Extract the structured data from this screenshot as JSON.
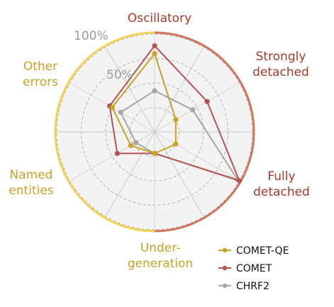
{
  "chart_data": {
    "type": "radar",
    "axes": [
      {
        "key": "oscillatory",
        "lines": [
          "Oscillatory"
        ],
        "group": "hallucination"
      },
      {
        "key": "strongly_detached",
        "lines": [
          "Strongly",
          "detached"
        ],
        "group": "hallucination"
      },
      {
        "key": "fully_detached",
        "lines": [
          "Fully",
          "detached"
        ],
        "group": "hallucination"
      },
      {
        "key": "undergeneration",
        "lines": [
          "Under-",
          "generation"
        ],
        "group": "error"
      },
      {
        "key": "named_entities",
        "lines": [
          "Named",
          "entities"
        ],
        "group": "error"
      },
      {
        "key": "other_errors",
        "lines": [
          "Other",
          "errors"
        ],
        "group": "error"
      }
    ],
    "range": [
      0,
      100
    ],
    "ticks": [
      {
        "value": 50,
        "label": "50%"
      },
      {
        "value": 100,
        "label": "100%"
      }
    ],
    "grid": true,
    "legend_position": "bottom-right",
    "series": [
      {
        "name": "COMET-QE",
        "color": "#c9a227",
        "values": [
          80,
          25,
          25,
          22,
          28,
          50
        ]
      },
      {
        "name": "COMET",
        "color": "#b5534f",
        "values": [
          88,
          62,
          100,
          22,
          44,
          53
        ]
      },
      {
        "name": "CHRF2",
        "color": "#a6a6a6",
        "values": [
          42,
          45,
          98,
          22,
          22,
          40
        ]
      }
    ],
    "group_colors": {
      "hallucination": "#d2735a",
      "error": "#f2d254"
    },
    "label_colors": {
      "hallucination": "#a83a2b",
      "error": "#c9a227"
    }
  }
}
